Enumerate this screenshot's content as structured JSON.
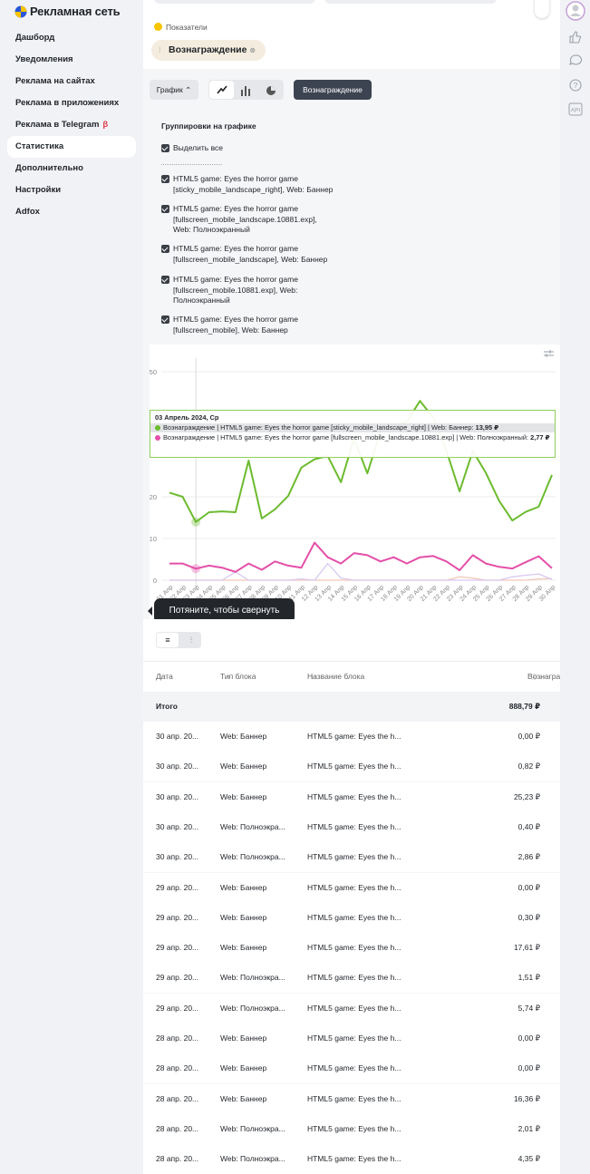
{
  "sidebar": {
    "logo": "Рекламная сеть",
    "menu": [
      "Дашборд",
      "Уведомления",
      "Реклама на сайтах",
      "Реклама в приложениях",
      "Реклама в Telegram",
      "Статистика",
      "Дополнительно",
      "Настройки",
      "Adfox"
    ],
    "beta": "β",
    "active": 5
  },
  "metrics": {
    "label": "Показатели",
    "chip": "Вознаграждение"
  },
  "toolbar": {
    "chart_button": "График",
    "metric_button": "Вознаграждение"
  },
  "groupings": {
    "title": "Группировки на графике",
    "select_all": "Выделить все",
    "items": [
      "HTML5 game: Eyes the horror game [sticky_mobile_landscape_right], Web: Баннер",
      "HTML5 game: Eyes the horror game [fullscreen_mobile_landscape.10881.exp], Web: Полноэкранный",
      "HTML5 game: Eyes the horror game [fullscreen_mobile_landscape], Web: Баннер",
      "HTML5 game: Eyes the horror game [fullscreen_mobile.10881.exp], Web: Полноэкранный",
      "HTML5 game: Eyes the horror game [fullscreen_mobile], Web: Баннер"
    ]
  },
  "chart_data": {
    "type": "line",
    "categories": [
      "01 Апр",
      "02 Апр",
      "03 Апр",
      "04 Апр",
      "05 Апр",
      "06 Апр",
      "07 Апр",
      "08 Апр",
      "09 Апр",
      "10 Апр",
      "11 Апр",
      "12 Апр",
      "13 Апр",
      "14 Апр",
      "15 Апр",
      "16 Апр",
      "17 Апр",
      "18 Апр",
      "19 Апр",
      "20 Апр",
      "21 Апр",
      "22 Апр",
      "23 Апр",
      "24 Апр",
      "25 Апр",
      "26 Апр",
      "27 Апр",
      "28 Апр",
      "29 Апр",
      "30 Апр"
    ],
    "ylim": [
      0,
      50
    ],
    "yticks": [
      0,
      10,
      20,
      30,
      40,
      50
    ],
    "grid": true,
    "series": [
      {
        "color": "#f2c6b8",
        "values": [
          0,
          0,
          0,
          0,
          0,
          0,
          0,
          0,
          0,
          0,
          0,
          0,
          0,
          0,
          0,
          0,
          0,
          0,
          0,
          0,
          0,
          0,
          0.8,
          0.5,
          0,
          0,
          0,
          0,
          0.3,
          0.4
        ]
      },
      {
        "color": "#d8c8f0",
        "values": [
          0,
          0,
          0,
          0,
          0,
          2,
          0,
          0,
          0,
          0,
          0.3,
          0,
          4,
          0.5,
          0,
          0,
          0,
          0,
          0,
          0,
          0,
          0,
          0,
          0,
          0,
          0,
          0.8,
          1.2,
          1.5,
          0.2
        ]
      },
      {
        "color": "#e44fa8",
        "values": [
          4,
          4,
          2.77,
          3.5,
          3,
          2,
          4,
          2.5,
          4.5,
          3.5,
          3,
          9,
          5.5,
          4,
          6.5,
          6,
          4.5,
          5.5,
          4,
          5.5,
          5.8,
          4.5,
          2.4,
          6,
          4,
          3.2,
          2.8,
          4.3,
          5.74,
          2.86
        ]
      },
      {
        "color": "#6cbb2e",
        "values": [
          21,
          20,
          13.95,
          16.3,
          16.5,
          16.3,
          28.7,
          14.8,
          17,
          20.2,
          27,
          29,
          29.8,
          23.5,
          34,
          25.6,
          35.6,
          37,
          38,
          43,
          39,
          31,
          21.3,
          31,
          25.7,
          19,
          14.3,
          16.36,
          17.61,
          25.23
        ]
      }
    ]
  },
  "tooltip": {
    "date": "03 Апрель 2024, Ср",
    "lines": [
      {
        "color": "#6cbb2e",
        "label": "Вознаграждение | HTML5 game: Eyes the horror game [sticky_mobile_landscape_right] | Web: Баннер:",
        "value": "13,95 ₽"
      },
      {
        "color": "#e44fa8",
        "label": "Вознаграждение | HTML5 game: Eyes the horror game [fullscreen_mobile_landscape.10881.exp] | Web: Полноэкранный:",
        "value": "2,77 ₽"
      }
    ]
  },
  "hint": "Потяните, чтобы свернуть",
  "table": {
    "columns": [
      "Дата",
      "Тип блока",
      "Название блока",
      "Вознаграждение"
    ],
    "total": {
      "label": "Итого",
      "value": "888,79 ₽"
    },
    "rows": [
      [
        "30 апр. 20...",
        "Web: Баннер",
        "HTML5 game: Eyes the h...",
        "0,00 ₽"
      ],
      [
        "30 апр. 20...",
        "Web: Баннер",
        "HTML5 game: Eyes the h...",
        "0,82 ₽"
      ],
      [
        "30 апр. 20...",
        "Web: Баннер",
        "HTML5 game: Eyes the h...",
        "25,23 ₽"
      ],
      [
        "30 апр. 20...",
        "Web: Полноэкра...",
        "HTML5 game: Eyes the h...",
        "0,40 ₽"
      ],
      [
        "30 апр. 20...",
        "Web: Полноэкра...",
        "HTML5 game: Eyes the h...",
        "2,86 ₽"
      ],
      [
        "29 апр. 20...",
        "Web: Баннер",
        "HTML5 game: Eyes the h...",
        "0,00 ₽"
      ],
      [
        "29 апр. 20...",
        "Web: Баннер",
        "HTML5 game: Eyes the h...",
        "0,30 ₽"
      ],
      [
        "29 апр. 20...",
        "Web: Баннер",
        "HTML5 game: Eyes the h...",
        "17,61 ₽"
      ],
      [
        "29 апр. 20...",
        "Web: Полноэкра...",
        "HTML5 game: Eyes the h...",
        "1,51 ₽"
      ],
      [
        "29 апр. 20...",
        "Web: Полноэкра...",
        "HTML5 game: Eyes the h...",
        "5,74 ₽"
      ],
      [
        "28 апр. 20...",
        "Web: Баннер",
        "HTML5 game: Eyes the h...",
        "0,00 ₽"
      ],
      [
        "28 апр. 20...",
        "Web: Баннер",
        "HTML5 game: Eyes the h...",
        "0,00 ₽"
      ],
      [
        "28 апр. 20...",
        "Web: Баннер",
        "HTML5 game: Eyes the h...",
        "16,36 ₽"
      ],
      [
        "28 апр. 20...",
        "Web: Полноэкра...",
        "HTML5 game: Eyes the h...",
        "2,01 ₽"
      ],
      [
        "28 апр. 20...",
        "Web: Полноэкра...",
        "HTML5 game: Eyes the h...",
        "4,35 ₽"
      ]
    ]
  },
  "rail": {
    "api": "API"
  }
}
